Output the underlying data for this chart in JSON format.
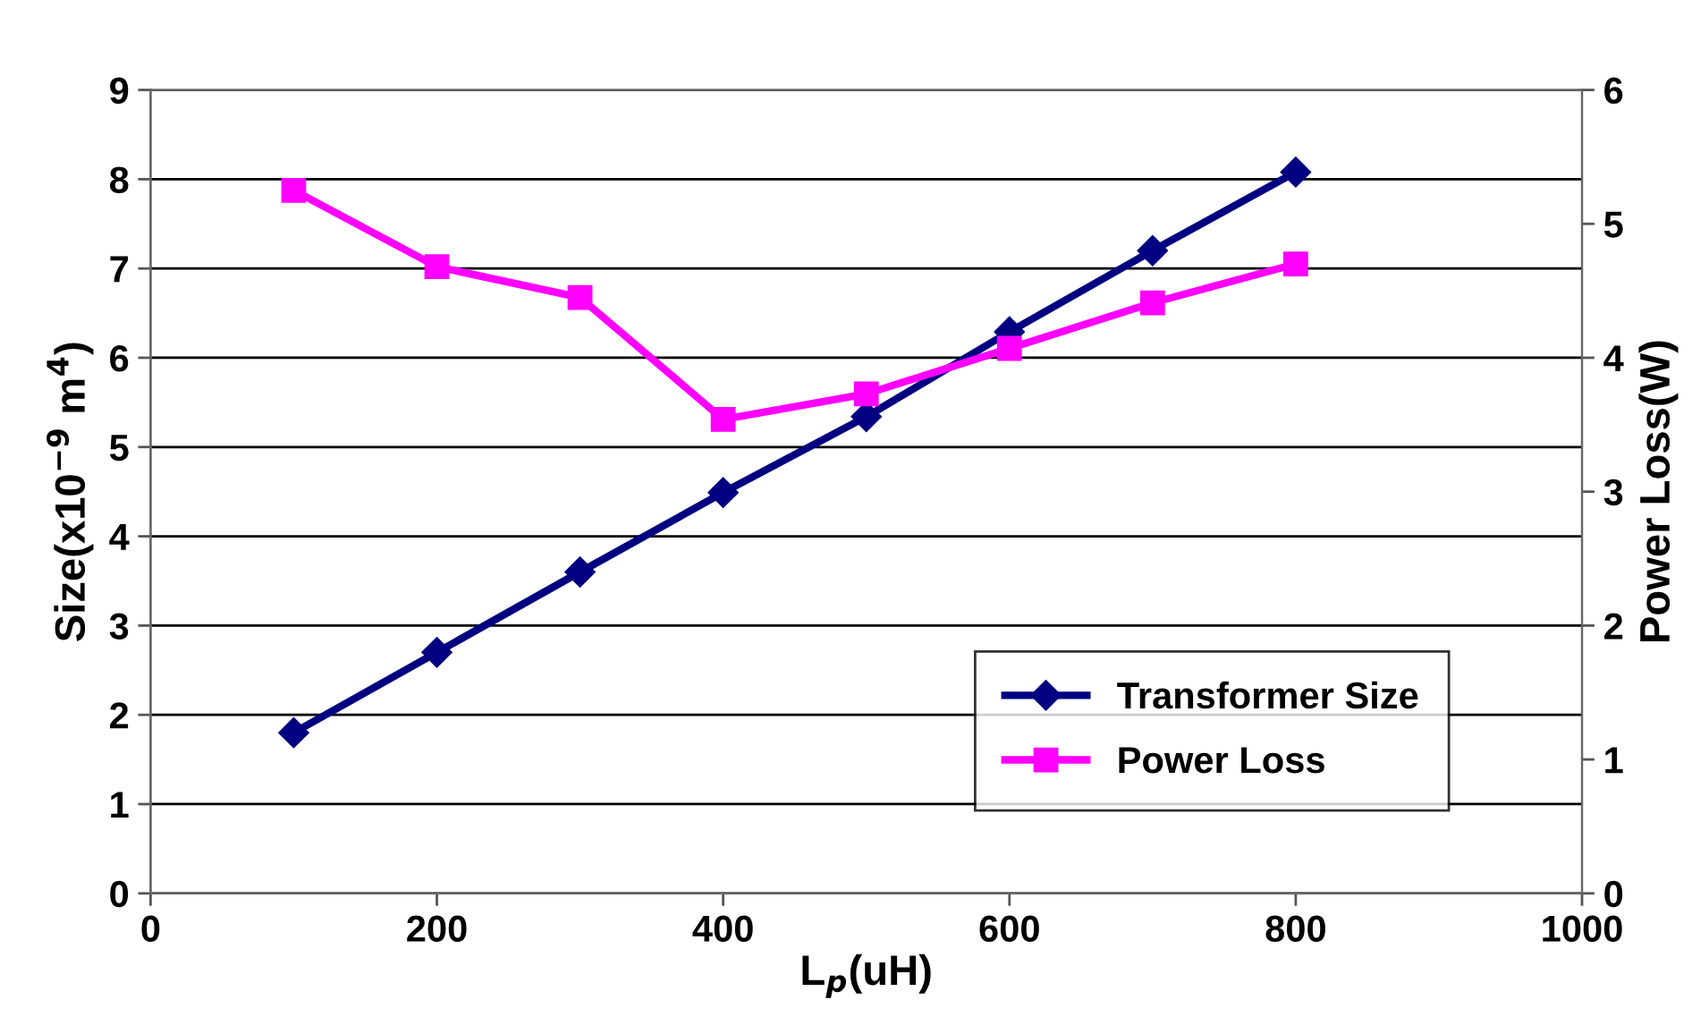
{
  "chart_data": {
    "type": "line",
    "xlabel": "L$_{p}$(uH)",
    "ylabel": "Size(x10$^{−9}$ m$^{4}$)",
    "y2label": "Power Loss(W)",
    "x": [
      100,
      200,
      300,
      400,
      500,
      600,
      700,
      800
    ],
    "series": [
      {
        "name": "Transformer Size",
        "color": "#000080",
        "marker": "diamond",
        "values": [
          1.8,
          2.7,
          3.6,
          4.49,
          5.34,
          6.29,
          7.2,
          8.08
        ]
      },
      {
        "name": "Power Loss",
        "color": "#ff00ff",
        "marker": "square",
        "axis": "y2",
        "values": [
          5.25,
          4.68,
          4.45,
          3.54,
          3.73,
          4.07,
          4.41,
          4.7
        ]
      }
    ],
    "xlim": [
      0,
      1000
    ],
    "xticks": [
      0,
      200,
      400,
      600,
      800,
      1000
    ],
    "ylim": [
      0,
      9
    ],
    "yticks": [
      0,
      1,
      2,
      3,
      4,
      5,
      6,
      7,
      8,
      9
    ],
    "y2lim": [
      0,
      6
    ],
    "y2ticks": [
      0,
      1,
      2,
      3,
      4,
      5,
      6
    ],
    "grid": "y",
    "legend": "bottom right",
    "line_style": "solid"
  }
}
